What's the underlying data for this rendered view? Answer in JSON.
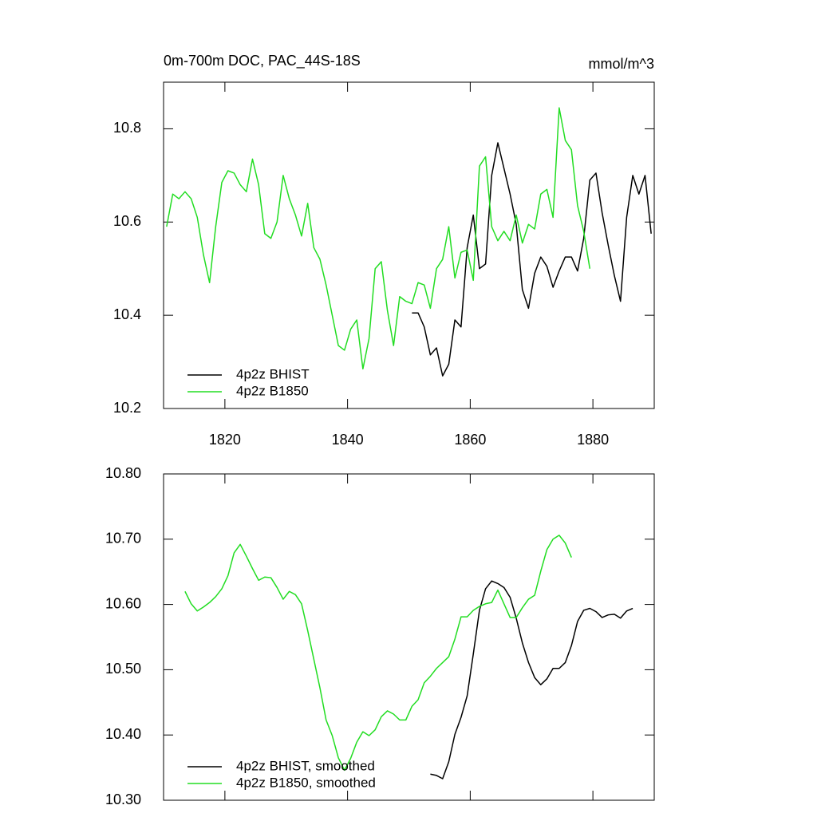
{
  "chart_data": [
    {
      "type": "line",
      "title": "0m-700m DOC, PAC_44S-18S",
      "units": "mmol/m^3",
      "xlim": [
        1810,
        1890
      ],
      "xticks": [
        1820,
        1840,
        1860,
        1880
      ],
      "ylim": [
        10.2,
        10.9
      ],
      "yticks": [
        10.2,
        10.4,
        10.6,
        10.8
      ],
      "legend": "lower left",
      "series": [
        {
          "name": "4p2z BHIST",
          "color": "#000000",
          "x": [
            1850.5,
            1851.5,
            1852.5,
            1853.5,
            1854.5,
            1855.5,
            1856.5,
            1857.5,
            1858.5,
            1859.5,
            1860.5,
            1861.5,
            1862.5,
            1863.5,
            1864.5,
            1865.5,
            1866.5,
            1867.5,
            1868.5,
            1869.5,
            1870.5,
            1871.5,
            1872.5,
            1873.5,
            1874.5,
            1875.5,
            1876.5,
            1877.5,
            1878.5,
            1879.5,
            1880.5,
            1881.5,
            1882.5,
            1883.5,
            1884.5,
            1885.5,
            1886.5,
            1887.5,
            1888.5,
            1889.5
          ],
          "values": [
            10.405,
            10.405,
            10.375,
            10.315,
            10.33,
            10.27,
            10.295,
            10.39,
            10.375,
            10.545,
            10.615,
            10.5,
            10.51,
            10.7,
            10.77,
            10.715,
            10.66,
            10.595,
            10.455,
            10.415,
            10.49,
            10.525,
            10.505,
            10.46,
            10.495,
            10.525,
            10.525,
            10.495,
            10.565,
            10.69,
            10.705,
            10.62,
            10.55,
            10.485,
            10.43,
            10.61,
            10.7,
            10.66,
            10.7,
            10.575
          ]
        },
        {
          "name": "4p2z B1850",
          "color": "#22dd22",
          "x": [
            1810.5,
            1811.5,
            1812.5,
            1813.5,
            1814.5,
            1815.5,
            1816.5,
            1817.5,
            1818.5,
            1819.5,
            1820.5,
            1821.5,
            1822.5,
            1823.5,
            1824.5,
            1825.5,
            1826.5,
            1827.5,
            1828.5,
            1829.5,
            1830.5,
            1831.5,
            1832.5,
            1833.5,
            1834.5,
            1835.5,
            1836.5,
            1837.5,
            1838.5,
            1839.5,
            1840.5,
            1841.5,
            1842.5,
            1843.5,
            1844.5,
            1845.5,
            1846.5,
            1847.5,
            1848.5,
            1849.5,
            1850.5,
            1851.5,
            1852.5,
            1853.5,
            1854.5,
            1855.5,
            1856.5,
            1857.5,
            1858.5,
            1859.5,
            1860.5,
            1861.5,
            1862.5,
            1863.5,
            1864.5,
            1865.5,
            1866.5,
            1867.5,
            1868.5,
            1869.5,
            1870.5,
            1871.5,
            1872.5,
            1873.5,
            1874.5,
            1875.5,
            1876.5,
            1877.5,
            1878.5,
            1879.5
          ],
          "values": [
            10.59,
            10.66,
            10.65,
            10.665,
            10.65,
            10.61,
            10.53,
            10.47,
            10.59,
            10.685,
            10.71,
            10.705,
            10.68,
            10.665,
            10.735,
            10.68,
            10.575,
            10.565,
            10.6,
            10.7,
            10.65,
            10.615,
            10.57,
            10.64,
            10.545,
            10.52,
            10.465,
            10.4,
            10.335,
            10.325,
            10.37,
            10.39,
            10.285,
            10.35,
            10.5,
            10.515,
            10.41,
            10.335,
            10.44,
            10.43,
            10.425,
            10.47,
            10.465,
            10.415,
            10.5,
            10.52,
            10.59,
            10.48,
            10.535,
            10.54,
            10.475,
            10.72,
            10.74,
            10.59,
            10.56,
            10.58,
            10.56,
            10.615,
            10.555,
            10.595,
            10.585,
            10.66,
            10.67,
            10.61,
            10.845,
            10.775,
            10.755,
            10.635,
            10.58,
            10.5
          ]
        }
      ]
    },
    {
      "type": "line",
      "xlim": [
        1810,
        1890
      ],
      "xticks": [
        1820,
        1840,
        1860,
        1880
      ],
      "xtick_labels": false,
      "ylim": [
        10.3,
        10.8
      ],
      "yticks": [
        {
          "value": 10.3,
          "label": "10.30"
        },
        {
          "value": 10.4,
          "label": "10.40"
        },
        {
          "value": 10.5,
          "label": "10.50"
        },
        {
          "value": 10.6,
          "label": "10.60"
        },
        {
          "value": 10.7,
          "label": "10.70"
        },
        {
          "value": 10.8,
          "label": "10.80"
        }
      ],
      "legend": "lower left",
      "series": [
        {
          "name": "4p2z BHIST, smoothed",
          "color": "#000000",
          "x": [
            1853.5,
            1854.5,
            1855.5,
            1856.5,
            1857.5,
            1858.5,
            1859.5,
            1860.5,
            1861.5,
            1862.5,
            1863.5,
            1864.5,
            1865.5,
            1866.5,
            1867.5,
            1868.5,
            1869.5,
            1870.5,
            1871.5,
            1872.5,
            1873.5,
            1874.5,
            1875.5,
            1876.5,
            1877.5,
            1878.5,
            1879.5,
            1880.5,
            1881.5,
            1882.5,
            1883.5,
            1884.5,
            1885.5,
            1886.5
          ],
          "values": [
            10.34,
            10.338,
            10.333,
            10.359,
            10.401,
            10.427,
            10.46,
            10.524,
            10.591,
            10.624,
            10.636,
            10.632,
            10.626,
            10.611,
            10.579,
            10.541,
            10.511,
            10.488,
            10.477,
            10.486,
            10.502,
            10.502,
            10.511,
            10.537,
            10.574,
            10.591,
            10.594,
            10.589,
            10.58,
            10.584,
            10.585,
            10.579,
            10.59,
            10.594
          ]
        },
        {
          "name": "4p2z B1850, smoothed",
          "color": "#22dd22",
          "x": [
            1813.5,
            1814.5,
            1815.5,
            1816.5,
            1817.5,
            1818.5,
            1819.5,
            1820.5,
            1821.5,
            1822.5,
            1823.5,
            1824.5,
            1825.5,
            1826.5,
            1827.5,
            1828.5,
            1829.5,
            1830.5,
            1831.5,
            1832.5,
            1833.5,
            1834.5,
            1835.5,
            1836.5,
            1837.5,
            1838.5,
            1839.5,
            1840.5,
            1841.5,
            1842.5,
            1843.5,
            1844.5,
            1845.5,
            1846.5,
            1847.5,
            1848.5,
            1849.5,
            1850.5,
            1851.5,
            1852.5,
            1853.5,
            1854.5,
            1855.5,
            1856.5,
            1857.5,
            1858.5,
            1859.5,
            1860.5,
            1861.5,
            1862.5,
            1863.5,
            1864.5,
            1865.5,
            1866.5,
            1867.5,
            1868.5,
            1869.5,
            1870.5,
            1871.5,
            1872.5,
            1873.5,
            1874.5,
            1875.5,
            1876.5
          ],
          "values": [
            10.62,
            10.601,
            10.59,
            10.596,
            10.603,
            10.612,
            10.624,
            10.644,
            10.679,
            10.692,
            10.674,
            10.655,
            10.637,
            10.642,
            10.641,
            10.626,
            10.608,
            10.62,
            10.615,
            10.601,
            10.56,
            10.516,
            10.472,
            10.423,
            10.399,
            10.365,
            10.346,
            10.364,
            10.389,
            10.405,
            10.399,
            10.408,
            10.428,
            10.437,
            10.432,
            10.423,
            10.423,
            10.444,
            10.454,
            10.48,
            10.49,
            10.502,
            10.511,
            10.52,
            10.547,
            10.581,
            10.581,
            10.591,
            10.597,
            10.601,
            10.603,
            10.622,
            10.601,
            10.58,
            10.58,
            10.595,
            10.608,
            10.614,
            10.651,
            10.684,
            10.7,
            10.706,
            10.694,
            10.672
          ]
        }
      ]
    }
  ]
}
